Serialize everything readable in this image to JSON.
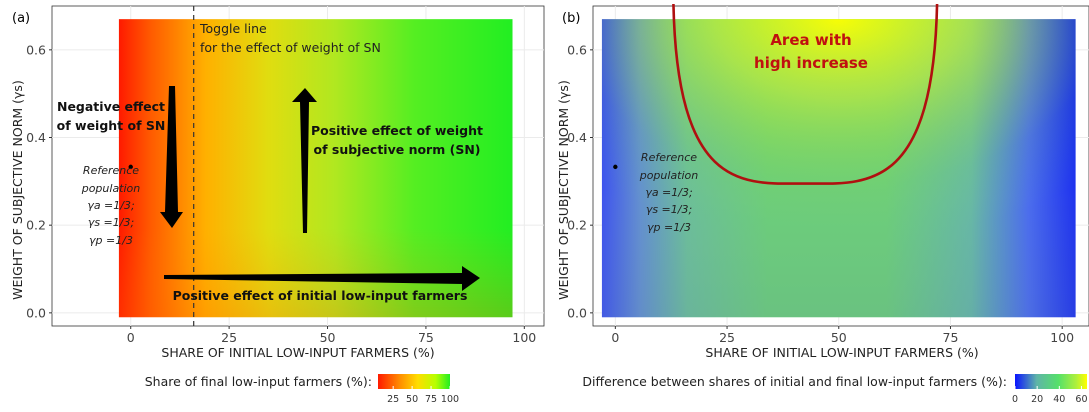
{
  "chart_data": [
    {
      "type": "heatmap",
      "panel_label": "(a)",
      "xlabel": "SHARE OF INITIAL LOW-INPUT FARMERS (%)",
      "ylabel": "WEIGHT OF SUBJECTIVE NORM (γs)",
      "xlim": [
        -20,
        105
      ],
      "ylim": [
        -0.03,
        0.7
      ],
      "x_ticks": [
        0,
        25,
        50,
        75,
        100
      ],
      "y_ticks": [
        0.0,
        0.2,
        0.4,
        0.6
      ],
      "x_tick_labels": [
        "0",
        "25",
        "50",
        "75",
        "100"
      ],
      "y_tick_labels": [
        "0.0",
        "0.2",
        "0.4",
        "0.6"
      ],
      "data_extent": {
        "x": [
          -3,
          97
        ],
        "y": [
          -0.01,
          0.67
        ]
      },
      "grid": true,
      "reference_point": {
        "x": 0,
        "y": 0.333
      },
      "toggle_line_x": 16,
      "colorscale": {
        "title": "Share of final low-input farmers (%):",
        "tick_labels": [
          "25",
          "50",
          "75",
          "100"
        ],
        "tick_values": [
          25,
          50,
          75,
          100
        ],
        "range": [
          5,
          100
        ],
        "colors": [
          "#ff1a00",
          "#ff8c00",
          "#ffdd00",
          "#b8ff00",
          "#22ee22"
        ]
      },
      "annotations": {
        "toggle_line": [
          "Toggle line",
          "for the effect of weight of SN"
        ],
        "negative": [
          "Negative effect",
          "of weight of SN"
        ],
        "positive_sn": [
          "Positive effect of weight",
          "of subjective norm (SN)"
        ],
        "positive_initial": "Positive effect of initial low-input farmers",
        "reference": [
          "Reference",
          "population",
          "γa =1/3;",
          "γs =1/3;",
          "γp =1/3"
        ]
      }
    },
    {
      "type": "heatmap",
      "panel_label": "(b)",
      "xlabel": "SHARE OF INITIAL LOW-INPUT FARMERS (%)",
      "ylabel": "WEIGHT OF SUBJECTIVE NORM (γs)",
      "xlim": [
        -5,
        106
      ],
      "ylim": [
        -0.03,
        0.7
      ],
      "x_ticks": [
        0,
        25,
        50,
        75,
        100
      ],
      "y_ticks": [
        0.0,
        0.2,
        0.4,
        0.6
      ],
      "x_tick_labels": [
        "0",
        "25",
        "50",
        "75",
        "100"
      ],
      "y_tick_labels": [
        "0.0",
        "0.2",
        "0.4",
        "0.6"
      ],
      "data_extent": {
        "x": [
          -3,
          103
        ],
        "y": [
          -0.01,
          0.67
        ]
      },
      "grid": true,
      "reference_point": {
        "x": 0,
        "y": 0.333
      },
      "colorscale": {
        "title": "Difference between shares of initial and final low-input farmers (%):",
        "tick_labels": [
          "0",
          "20",
          "40",
          "60"
        ],
        "tick_values": [
          0,
          20,
          40,
          60
        ],
        "range": [
          0,
          65
        ],
        "colors": [
          "#0a14ff",
          "#5fb4a8",
          "#55e06a",
          "#aef03c",
          "#ffff00"
        ]
      },
      "annotations": {
        "area": [
          "Area with",
          "high increase"
        ],
        "reference": [
          "Reference",
          "population",
          "γa =1/3;",
          "γs =1/3;",
          "γp =1/3"
        ]
      }
    }
  ]
}
